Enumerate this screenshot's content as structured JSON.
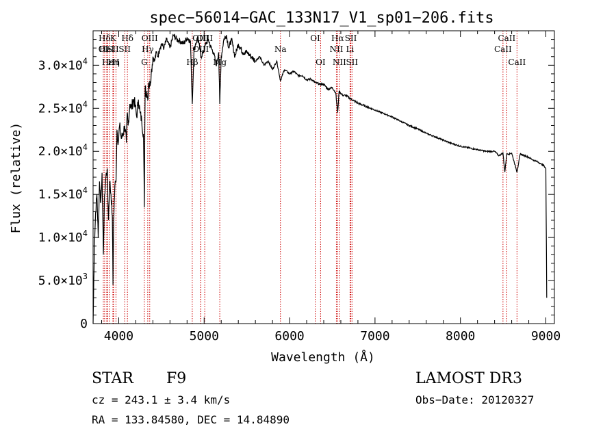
{
  "chart_data": {
    "type": "line",
    "title": "spec−56014−GAC_133N17_V1_sp01−206.fits",
    "xlabel": "Wavelength (Å)",
    "ylabel": "Flux (relative)",
    "xlim": [
      3700,
      9100
    ],
    "ylim": [
      0,
      34000
    ],
    "x_ticks": [
      {
        "value": 4000,
        "label": "4000"
      },
      {
        "value": 5000,
        "label": "5000"
      },
      {
        "value": 6000,
        "label": "6000"
      },
      {
        "value": 7000,
        "label": "7000"
      },
      {
        "value": 8000,
        "label": "8000"
      },
      {
        "value": 9000,
        "label": "9000"
      }
    ],
    "y_ticks": [
      {
        "value": 0,
        "mant": "0",
        "exp": ""
      },
      {
        "value": 5000,
        "mant": "5.0×10",
        "exp": "3"
      },
      {
        "value": 10000,
        "mant": "1.0×10",
        "exp": "4"
      },
      {
        "value": 15000,
        "mant": "1.5×10",
        "exp": "4"
      },
      {
        "value": 20000,
        "mant": "2.0×10",
        "exp": "4"
      },
      {
        "value": 25000,
        "mant": "2.5×10",
        "exp": "4"
      },
      {
        "value": 30000,
        "mant": "3.0×10",
        "exp": "4"
      }
    ],
    "spectrum": {
      "x": [
        3700,
        3715,
        3730,
        3745,
        3760,
        3775,
        3790,
        3805,
        3820,
        3835,
        3850,
        3865,
        3880,
        3895,
        3910,
        3925,
        3933,
        3940,
        3955,
        3968,
        3980,
        3995,
        4010,
        4030,
        4050,
        4070,
        4090,
        4100,
        4110,
        4130,
        4150,
        4170,
        4190,
        4210,
        4230,
        4250,
        4270,
        4290,
        4300,
        4305,
        4310,
        4320,
        4330,
        4340,
        4350,
        4360,
        4380,
        4400,
        4420,
        4440,
        4460,
        4480,
        4500,
        4530,
        4560,
        4600,
        4640,
        4680,
        4720,
        4760,
        4800,
        4840,
        4861,
        4880,
        4900,
        4920,
        4940,
        4960,
        4990,
        5020,
        5050,
        5080,
        5110,
        5140,
        5170,
        5183,
        5200,
        5230,
        5260,
        5290,
        5320,
        5360,
        5400,
        5450,
        5500,
        5550,
        5600,
        5650,
        5700,
        5750,
        5800,
        5850,
        5893,
        5940,
        6000,
        6050,
        6100,
        6150,
        6200,
        6250,
        6300,
        6350,
        6400,
        6450,
        6500,
        6540,
        6563,
        6580,
        6620,
        6660,
        6700,
        6750,
        6800,
        6900,
        7000,
        7100,
        7200,
        7300,
        7400,
        7500,
        7600,
        7700,
        7800,
        7900,
        8000,
        8100,
        8200,
        8300,
        8400,
        8450,
        8498,
        8520,
        8542,
        8570,
        8600,
        8662,
        8700,
        8750,
        8800,
        8850,
        8900,
        8950,
        8980,
        9000,
        9010
      ],
      "y": [
        0,
        9000,
        13000,
        15000,
        10000,
        16500,
        14000,
        17500,
        8000,
        15000,
        17000,
        18000,
        12000,
        16500,
        15000,
        12500,
        4500,
        12000,
        16000,
        16500,
        22500,
        21000,
        23000,
        21500,
        22000,
        23000,
        21000,
        24500,
        23000,
        25500,
        25000,
        26000,
        25500,
        24000,
        26000,
        24500,
        23500,
        22000,
        13500,
        22000,
        27500,
        26500,
        27000,
        26000,
        28000,
        27500,
        29000,
        31000,
        30500,
        31500,
        31000,
        32000,
        32500,
        32000,
        33000,
        32000,
        33500,
        33000,
        32800,
        32500,
        33200,
        32800,
        25500,
        31500,
        32500,
        33000,
        32500,
        31000,
        31500,
        32500,
        33000,
        32000,
        31500,
        30000,
        31500,
        25500,
        31000,
        33000,
        33500,
        32000,
        33000,
        31000,
        32500,
        31500,
        31500,
        31000,
        30500,
        31000,
        30000,
        30500,
        29500,
        30500,
        28200,
        29500,
        29000,
        29300,
        28800,
        28800,
        28300,
        28400,
        28000,
        27800,
        27800,
        27200,
        27400,
        26800,
        24500,
        27000,
        26500,
        26500,
        26200,
        25900,
        25600,
        25200,
        24800,
        24400,
        24000,
        23500,
        23000,
        22600,
        22100,
        21700,
        21300,
        20900,
        20600,
        20400,
        20200,
        20000,
        20000,
        19500,
        19800,
        17600,
        19700,
        19700,
        19800,
        17600,
        19700,
        19500,
        19300,
        19000,
        18800,
        18500,
        18300,
        18000,
        3000
      ]
    },
    "lines": [
      {
        "w": 3820,
        "label": "OⅠ",
        "row": 2
      },
      {
        "w": 3835,
        "label": "Hδ",
        "row": 1
      },
      {
        "w": 3860,
        "label": "HeI",
        "row": 2
      },
      {
        "w": 3870,
        "label": "Hε",
        "row": 3
      },
      {
        "w": 3889,
        "label": "",
        "row": 0
      },
      {
        "w": 3935,
        "label": "K",
        "row": 1
      },
      {
        "w": 3932,
        "label": "SII",
        "row": 2
      },
      {
        "w": 3940,
        "label": "Hη",
        "row": 3
      },
      {
        "w": 3968,
        "label": "H",
        "row": 3
      },
      {
        "w": 4070,
        "label": "SII",
        "row": 2
      },
      {
        "w": 4102,
        "label": "Hδ",
        "row": 1
      },
      {
        "w": 4300,
        "label": "G",
        "row": 3
      },
      {
        "w": 4340,
        "label": "Hγ",
        "row": 2
      },
      {
        "w": 4363,
        "label": "OIII",
        "row": 1
      },
      {
        "w": 4861,
        "label": "Hβ",
        "row": 3
      },
      {
        "w": 4959,
        "label": "OIII",
        "row": 1
      },
      {
        "w": 5007,
        "label": "OIII",
        "row": 1
      },
      {
        "w": 4960,
        "label": "OIII",
        "row": 2
      },
      {
        "w": 5183,
        "label": "Mg",
        "row": 3
      },
      {
        "w": 5893,
        "label": "Na",
        "row": 2
      },
      {
        "w": 6300,
        "label": "OI",
        "row": 1
      },
      {
        "w": 6363,
        "label": "OI",
        "row": 3
      },
      {
        "w": 6548,
        "label": "NII",
        "row": 2
      },
      {
        "w": 6563,
        "label": "Hα",
        "row": 1
      },
      {
        "w": 6583,
        "label": "NII",
        "row": 3
      },
      {
        "w": 6708,
        "label": "Li",
        "row": 2
      },
      {
        "w": 6717,
        "label": "SII",
        "row": 1
      },
      {
        "w": 6731,
        "label": "SII",
        "row": 3
      },
      {
        "w": 8498,
        "label": "CaII",
        "row": 2
      },
      {
        "w": 8542,
        "label": "CaII",
        "row": 1
      },
      {
        "w": 8662,
        "label": "CaII",
        "row": 3
      }
    ],
    "x_line_color": "#cc0000"
  },
  "info": {
    "class": "STAR",
    "subclass": "F9",
    "cz": "cz = 243.1 ± 3.4 km/s",
    "radec": "RA = 133.84580, DEC =  14.84890",
    "survey": "LAMOST DR3",
    "obsdate": "Obs−Date: 20120327"
  }
}
